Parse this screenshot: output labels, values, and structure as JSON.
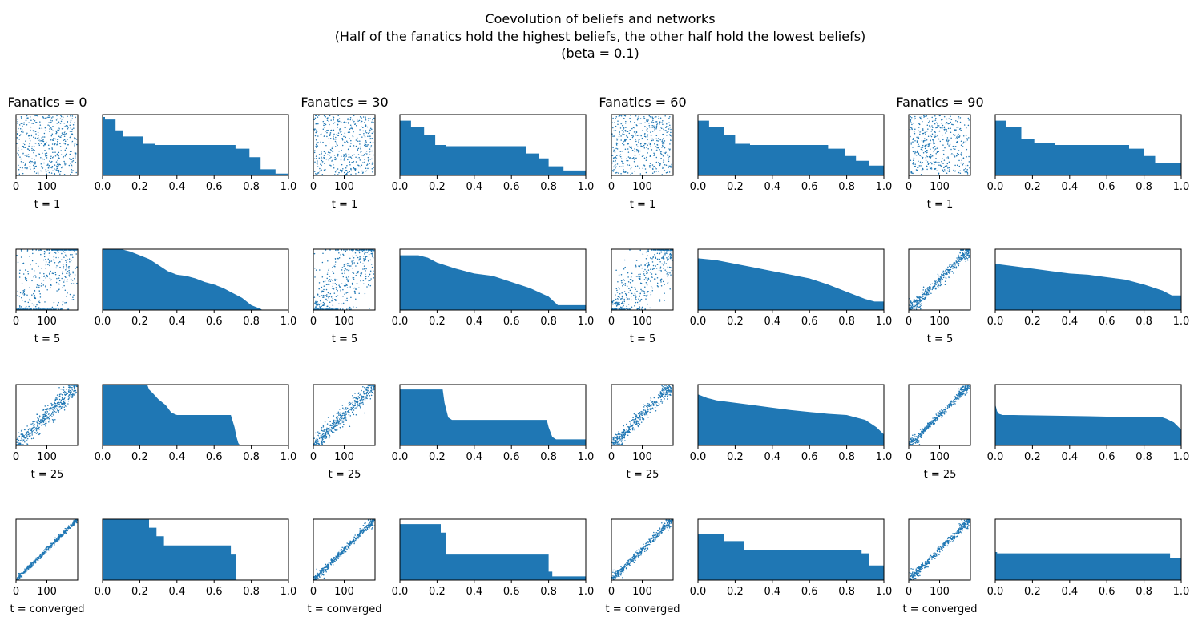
{
  "figure": {
    "title_lines": [
      "Coevolution of beliefs and networks",
      "(Half of the fanatics hold the highest beliefs, the other half hold the lowest beliefs)",
      "(beta = 0.1)"
    ],
    "bar_color": "#1f77b4"
  },
  "chart_data": {
    "type": "grid",
    "columns": [
      "Fanatics = 0",
      "Fanatics = 30",
      "Fanatics = 60",
      "Fanatics = 90"
    ],
    "rows": [
      "t = 1",
      "t = 5",
      "t = 25",
      "t = converged"
    ],
    "scatter_axes": {
      "type": "scatter",
      "x_ticks": [
        "0",
        "100"
      ],
      "xlim": [
        0,
        200
      ],
      "ylim": [
        0,
        200
      ],
      "y_ticks_visible": false,
      "description": "adjacency matrix of agent network sorted by belief"
    },
    "belief_axes": {
      "type": "area",
      "x_ticks": [
        "0.0",
        "0.2",
        "0.4",
        "0.6",
        "0.8",
        "1.0"
      ],
      "xlim": [
        0,
        1
      ],
      "y_ticks_visible": false,
      "description": "sorted belief distribution (descending step profile)"
    },
    "belief_profiles": [
      [
        [
          [
            0,
            0.96
          ],
          [
            0.013,
            0.96
          ],
          [
            0.013,
            0.92
          ],
          [
            0.07,
            0.92
          ],
          [
            0.07,
            0.74
          ],
          [
            0.11,
            0.74
          ],
          [
            0.11,
            0.64
          ],
          [
            0.22,
            0.64
          ],
          [
            0.22,
            0.52
          ],
          [
            0.28,
            0.52
          ],
          [
            0.28,
            0.5
          ],
          [
            0.715,
            0.5
          ],
          [
            0.715,
            0.44
          ],
          [
            0.79,
            0.44
          ],
          [
            0.79,
            0.3
          ],
          [
            0.85,
            0.3
          ],
          [
            0.85,
            0.1
          ],
          [
            0.93,
            0.1
          ],
          [
            0.93,
            0.03
          ],
          [
            1.0,
            0.03
          ]
        ],
        [
          [
            0,
            1.0
          ],
          [
            0.1,
            1.0
          ],
          [
            0.15,
            0.96
          ],
          [
            0.2,
            0.9
          ],
          [
            0.25,
            0.84
          ],
          [
            0.3,
            0.74
          ],
          [
            0.35,
            0.64
          ],
          [
            0.4,
            0.58
          ],
          [
            0.45,
            0.56
          ],
          [
            0.5,
            0.52
          ],
          [
            0.55,
            0.46
          ],
          [
            0.6,
            0.42
          ],
          [
            0.65,
            0.36
          ],
          [
            0.7,
            0.28
          ],
          [
            0.75,
            0.2
          ],
          [
            0.8,
            0.08
          ],
          [
            0.85,
            0.02
          ],
          [
            0.86,
            0.0
          ],
          [
            1.0,
            0.0
          ]
        ],
        [
          [
            0,
            1.0
          ],
          [
            0.24,
            1.0
          ],
          [
            0.25,
            0.92
          ],
          [
            0.27,
            0.86
          ],
          [
            0.3,
            0.76
          ],
          [
            0.34,
            0.66
          ],
          [
            0.37,
            0.54
          ],
          [
            0.4,
            0.5
          ],
          [
            0.69,
            0.5
          ],
          [
            0.7,
            0.4
          ],
          [
            0.71,
            0.3
          ],
          [
            0.72,
            0.15
          ],
          [
            0.73,
            0.04
          ],
          [
            0.74,
            0.0
          ],
          [
            1.0,
            0.0
          ]
        ],
        [
          [
            0,
            1.0
          ],
          [
            0.25,
            1.0
          ],
          [
            0.25,
            0.86
          ],
          [
            0.29,
            0.86
          ],
          [
            0.29,
            0.72
          ],
          [
            0.33,
            0.72
          ],
          [
            0.33,
            0.57
          ],
          [
            0.69,
            0.57
          ],
          [
            0.69,
            0.42
          ],
          [
            0.72,
            0.42
          ],
          [
            0.72,
            0.0
          ],
          [
            1.0,
            0.0
          ]
        ]
      ],
      [
        [
          [
            0,
            0.9
          ],
          [
            0.06,
            0.9
          ],
          [
            0.06,
            0.8
          ],
          [
            0.13,
            0.8
          ],
          [
            0.13,
            0.66
          ],
          [
            0.19,
            0.66
          ],
          [
            0.19,
            0.5
          ],
          [
            0.25,
            0.5
          ],
          [
            0.25,
            0.48
          ],
          [
            0.68,
            0.48
          ],
          [
            0.68,
            0.36
          ],
          [
            0.75,
            0.36
          ],
          [
            0.75,
            0.28
          ],
          [
            0.8,
            0.28
          ],
          [
            0.8,
            0.15
          ],
          [
            0.88,
            0.15
          ],
          [
            0.88,
            0.08
          ],
          [
            1.0,
            0.08
          ]
        ],
        [
          [
            0,
            0.9
          ],
          [
            0.1,
            0.9
          ],
          [
            0.15,
            0.86
          ],
          [
            0.2,
            0.78
          ],
          [
            0.3,
            0.68
          ],
          [
            0.4,
            0.6
          ],
          [
            0.5,
            0.56
          ],
          [
            0.6,
            0.46
          ],
          [
            0.7,
            0.36
          ],
          [
            0.8,
            0.22
          ],
          [
            0.85,
            0.08
          ],
          [
            1.0,
            0.08
          ]
        ],
        [
          [
            0,
            0.92
          ],
          [
            0.23,
            0.92
          ],
          [
            0.24,
            0.7
          ],
          [
            0.26,
            0.46
          ],
          [
            0.28,
            0.42
          ],
          [
            0.79,
            0.42
          ],
          [
            0.8,
            0.3
          ],
          [
            0.82,
            0.14
          ],
          [
            0.84,
            0.1
          ],
          [
            1.0,
            0.1
          ]
        ],
        [
          [
            0,
            0.92
          ],
          [
            0.22,
            0.92
          ],
          [
            0.22,
            0.78
          ],
          [
            0.25,
            0.78
          ],
          [
            0.25,
            0.42
          ],
          [
            0.8,
            0.42
          ],
          [
            0.8,
            0.14
          ],
          [
            0.82,
            0.14
          ],
          [
            0.82,
            0.06
          ],
          [
            1.0,
            0.06
          ]
        ]
      ],
      [
        [
          [
            0,
            0.9
          ],
          [
            0.06,
            0.9
          ],
          [
            0.06,
            0.8
          ],
          [
            0.14,
            0.8
          ],
          [
            0.14,
            0.66
          ],
          [
            0.2,
            0.66
          ],
          [
            0.2,
            0.52
          ],
          [
            0.28,
            0.52
          ],
          [
            0.28,
            0.5
          ],
          [
            0.7,
            0.5
          ],
          [
            0.7,
            0.44
          ],
          [
            0.79,
            0.44
          ],
          [
            0.79,
            0.32
          ],
          [
            0.85,
            0.32
          ],
          [
            0.85,
            0.24
          ],
          [
            0.92,
            0.24
          ],
          [
            0.92,
            0.16
          ],
          [
            1.0,
            0.16
          ]
        ],
        [
          [
            0,
            0.85
          ],
          [
            0.1,
            0.82
          ],
          [
            0.2,
            0.76
          ],
          [
            0.3,
            0.7
          ],
          [
            0.4,
            0.64
          ],
          [
            0.5,
            0.58
          ],
          [
            0.6,
            0.52
          ],
          [
            0.7,
            0.42
          ],
          [
            0.8,
            0.3
          ],
          [
            0.9,
            0.18
          ],
          [
            0.95,
            0.14
          ],
          [
            1.0,
            0.14
          ]
        ],
        [
          [
            0,
            0.84
          ],
          [
            0.05,
            0.78
          ],
          [
            0.1,
            0.74
          ],
          [
            0.2,
            0.7
          ],
          [
            0.3,
            0.66
          ],
          [
            0.4,
            0.62
          ],
          [
            0.5,
            0.58
          ],
          [
            0.6,
            0.55
          ],
          [
            0.7,
            0.52
          ],
          [
            0.8,
            0.5
          ],
          [
            0.9,
            0.42
          ],
          [
            0.96,
            0.3
          ],
          [
            1.0,
            0.18
          ]
        ],
        [
          [
            0,
            0.76
          ],
          [
            0.14,
            0.76
          ],
          [
            0.14,
            0.64
          ],
          [
            0.25,
            0.64
          ],
          [
            0.25,
            0.5
          ],
          [
            0.88,
            0.5
          ],
          [
            0.88,
            0.44
          ],
          [
            0.92,
            0.44
          ],
          [
            0.92,
            0.24
          ],
          [
            1.0,
            0.24
          ]
        ]
      ],
      [
        [
          [
            0,
            0.9
          ],
          [
            0.06,
            0.9
          ],
          [
            0.06,
            0.8
          ],
          [
            0.14,
            0.8
          ],
          [
            0.14,
            0.6
          ],
          [
            0.21,
            0.6
          ],
          [
            0.21,
            0.54
          ],
          [
            0.32,
            0.54
          ],
          [
            0.32,
            0.5
          ],
          [
            0.72,
            0.5
          ],
          [
            0.72,
            0.44
          ],
          [
            0.8,
            0.44
          ],
          [
            0.8,
            0.32
          ],
          [
            0.86,
            0.32
          ],
          [
            0.86,
            0.2
          ],
          [
            0.93,
            0.2
          ],
          [
            0.93,
            0.2
          ],
          [
            1.0,
            0.2
          ]
        ],
        [
          [
            0,
            0.76
          ],
          [
            0.1,
            0.72
          ],
          [
            0.2,
            0.68
          ],
          [
            0.3,
            0.64
          ],
          [
            0.4,
            0.6
          ],
          [
            0.5,
            0.58
          ],
          [
            0.6,
            0.54
          ],
          [
            0.7,
            0.5
          ],
          [
            0.8,
            0.42
          ],
          [
            0.9,
            0.32
          ],
          [
            0.95,
            0.24
          ],
          [
            1.0,
            0.24
          ]
        ],
        [
          [
            0,
            0.68
          ],
          [
            0.01,
            0.56
          ],
          [
            0.02,
            0.52
          ],
          [
            0.04,
            0.5
          ],
          [
            0.1,
            0.5
          ],
          [
            0.5,
            0.48
          ],
          [
            0.8,
            0.46
          ],
          [
            0.9,
            0.46
          ],
          [
            0.92,
            0.44
          ],
          [
            0.96,
            0.38
          ],
          [
            1.0,
            0.26
          ]
        ],
        [
          [
            0,
            0.46
          ],
          [
            0.01,
            0.46
          ],
          [
            0.01,
            0.44
          ],
          [
            0.94,
            0.44
          ],
          [
            0.94,
            0.36
          ],
          [
            1.0,
            0.36
          ]
        ]
      ]
    ],
    "scatter_bands": [
      [
        0.0,
        0.0,
        0.0,
        0.0
      ],
      [
        0.5,
        0.36,
        0.28,
        0.05
      ],
      [
        0.09,
        0.08,
        0.06,
        0.03
      ],
      [
        0.02,
        0.03,
        0.03,
        0.03
      ]
    ],
    "fanatic_counts": [
      0,
      30,
      60,
      90
    ],
    "x_tick_values_scatter": [
      0,
      100
    ],
    "x_tick_values_belief": [
      0.0,
      0.2,
      0.4,
      0.6,
      0.8,
      1.0
    ]
  }
}
